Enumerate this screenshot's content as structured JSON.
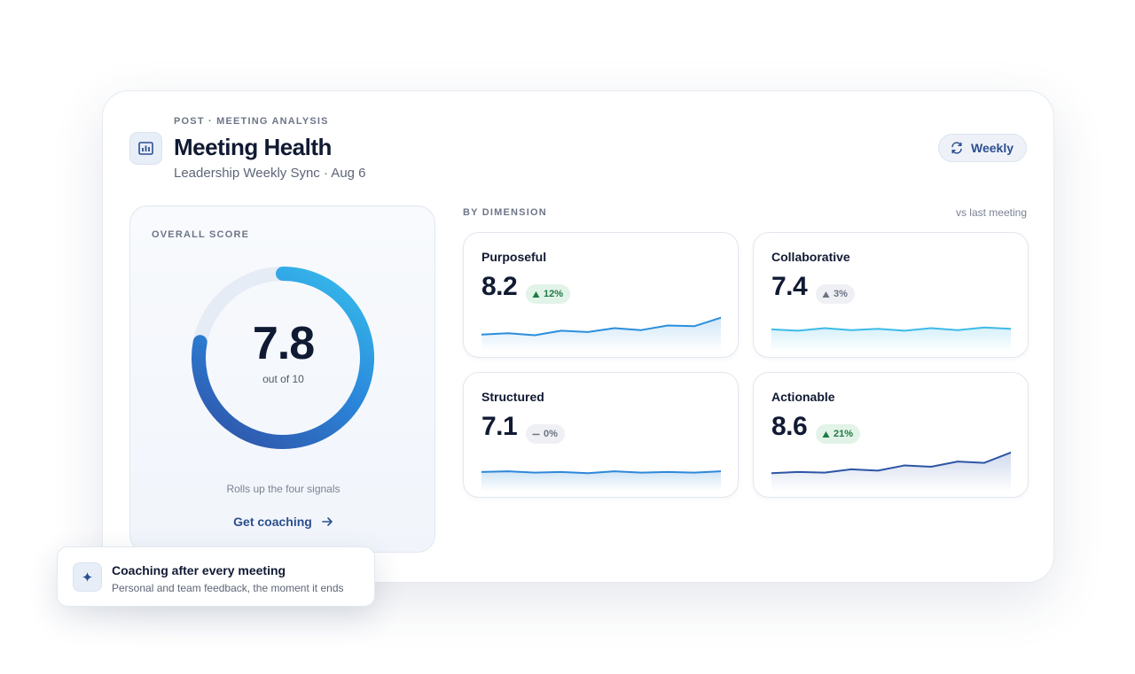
{
  "header": {
    "eyebrow": "POST · MEETING ANALYSIS",
    "title": "Meeting Health",
    "subtitle": "Leadership Weekly Sync · Aug 6",
    "period_button": "Weekly"
  },
  "overall": {
    "label": "OVERALL SCORE",
    "score": 7.8,
    "max_prefix": "out of",
    "max": 10,
    "note": "Rolls up the four signals",
    "action": "Get coaching"
  },
  "dimensions": {
    "label": "BY DIMENSION",
    "comparison": "vs last meeting",
    "sparkline_ylim": [
      6,
      9
    ],
    "items": [
      {
        "name": "Purposeful",
        "score": 8.2,
        "delta": "12%",
        "trend": "up",
        "tone": "positive",
        "color": "#2b8fdc",
        "sparkline": [
          6.9,
          7.0,
          6.85,
          7.2,
          7.1,
          7.4,
          7.25,
          7.6,
          7.55,
          8.2
        ]
      },
      {
        "name": "Collaborative",
        "score": 7.4,
        "delta": "3%",
        "trend": "up",
        "tone": "neutral",
        "color": "#3dbbe6",
        "sparkline": [
          7.3,
          7.2,
          7.4,
          7.25,
          7.35,
          7.2,
          7.4,
          7.25,
          7.45,
          7.35
        ]
      },
      {
        "name": "Structured",
        "score": 7.1,
        "delta": "0%",
        "trend": "flat",
        "tone": "neutral",
        "color": "#2f88d8",
        "sparkline": [
          7.1,
          7.15,
          7.05,
          7.1,
          7.0,
          7.15,
          7.05,
          7.1,
          7.05,
          7.15
        ]
      },
      {
        "name": "Actionable",
        "score": 8.6,
        "delta": "21%",
        "trend": "up",
        "tone": "positive",
        "color": "#2d55a6",
        "sparkline": [
          7.0,
          7.1,
          7.05,
          7.3,
          7.2,
          7.6,
          7.5,
          7.9,
          7.8,
          8.6
        ]
      }
    ]
  },
  "toast": {
    "title": "Coaching after every meeting",
    "body": "Personal and team feedback, the moment it ends"
  }
}
